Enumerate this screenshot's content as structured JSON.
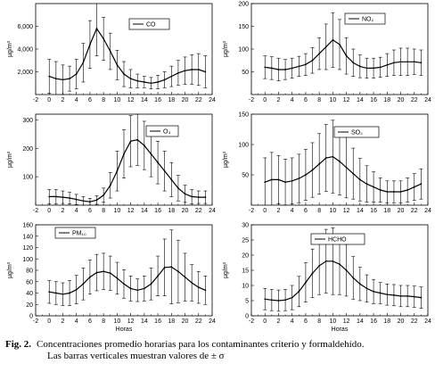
{
  "caption": {
    "figure_number": "Fig. 2.",
    "line1": "Concentraciones promedio horarias para los contaminantes criterio y formaldehído.",
    "line2": "Las barras verticales muestran valores de ± σ"
  },
  "chart_data": [
    {
      "type": "line",
      "legend": "CO",
      "ylabel": "µg/m³",
      "xlabel": "",
      "xlim": [
        -2,
        24
      ],
      "xticks": [
        -2,
        0,
        2,
        4,
        6,
        8,
        10,
        12,
        14,
        16,
        18,
        20,
        22,
        24
      ],
      "ylim": [
        0,
        8000
      ],
      "yticks": [
        2000,
        4000,
        6000
      ],
      "ytick_labels": [
        "2,000",
        "4,000",
        "6,000"
      ],
      "x": [
        0,
        1,
        2,
        3,
        4,
        5,
        6,
        7,
        8,
        9,
        10,
        11,
        12,
        13,
        14,
        15,
        16,
        17,
        18,
        19,
        20,
        21,
        22,
        23
      ],
      "y": [
        1600,
        1400,
        1300,
        1400,
        1800,
        2800,
        4400,
        5800,
        4900,
        3800,
        2600,
        1800,
        1400,
        1200,
        1100,
        1000,
        1100,
        1300,
        1600,
        1900,
        2100,
        2200,
        2200,
        2000
      ],
      "err": [
        1500,
        1500,
        1300,
        1100,
        1300,
        1700,
        2100,
        2400,
        1900,
        1600,
        1300,
        1100,
        800,
        600,
        500,
        500,
        600,
        700,
        900,
        1100,
        1200,
        1300,
        1400,
        1400
      ]
    },
    {
      "type": "line",
      "legend": "NO₂",
      "ylabel": "µg/m³",
      "xlabel": "",
      "xlim": [
        -2,
        24
      ],
      "xticks": [
        -2,
        0,
        2,
        4,
        6,
        8,
        10,
        12,
        14,
        16,
        18,
        20,
        22,
        24
      ],
      "ylim": [
        0,
        200
      ],
      "yticks": [
        50,
        100,
        150,
        200
      ],
      "ytick_labels": [
        "50",
        "100",
        "150",
        "200"
      ],
      "x": [
        0,
        1,
        2,
        3,
        4,
        5,
        6,
        7,
        8,
        9,
        10,
        11,
        12,
        13,
        14,
        15,
        16,
        17,
        18,
        19,
        20,
        21,
        22,
        23
      ],
      "y": [
        60,
        58,
        55,
        55,
        58,
        62,
        66,
        75,
        90,
        105,
        120,
        110,
        85,
        70,
        62,
        58,
        58,
        60,
        65,
        70,
        72,
        72,
        72,
        70
      ],
      "err": [
        25,
        25,
        25,
        22,
        22,
        22,
        24,
        28,
        35,
        50,
        60,
        55,
        40,
        30,
        25,
        22,
        22,
        22,
        25,
        28,
        30,
        30,
        28,
        28
      ]
    },
    {
      "type": "line",
      "legend": "O₃",
      "ylabel": "µg/m³",
      "xlabel": "",
      "xlim": [
        -2,
        24
      ],
      "xticks": [
        -2,
        0,
        2,
        4,
        6,
        8,
        10,
        12,
        14,
        16,
        18,
        20,
        22,
        24
      ],
      "ylim": [
        0,
        320
      ],
      "yticks": [
        100,
        200,
        300
      ],
      "ytick_labels": [
        "100",
        "200",
        "300"
      ],
      "x": [
        0,
        1,
        2,
        3,
        4,
        5,
        6,
        7,
        8,
        9,
        10,
        11,
        12,
        13,
        14,
        15,
        16,
        17,
        18,
        19,
        20,
        21,
        22,
        23
      ],
      "y": [
        30,
        30,
        28,
        25,
        20,
        15,
        12,
        18,
        35,
        70,
        120,
        180,
        225,
        230,
        210,
        180,
        150,
        120,
        90,
        60,
        40,
        30,
        28,
        28
      ],
      "err": [
        25,
        25,
        22,
        20,
        18,
        15,
        12,
        15,
        25,
        45,
        70,
        85,
        90,
        90,
        85,
        80,
        75,
        70,
        60,
        45,
        30,
        25,
        22,
        22
      ]
    },
    {
      "type": "line",
      "legend": "SO₂",
      "ylabel": "µg/m³",
      "xlabel": "",
      "xlim": [
        -2,
        24
      ],
      "xticks": [
        -2,
        0,
        2,
        4,
        6,
        8,
        10,
        12,
        14,
        16,
        18,
        20,
        22,
        24
      ],
      "ylim": [
        0,
        150
      ],
      "yticks": [
        50,
        100,
        150
      ],
      "ytick_labels": [
        "50",
        "100",
        "150"
      ],
      "x": [
        0,
        1,
        2,
        3,
        4,
        5,
        6,
        7,
        8,
        9,
        10,
        11,
        12,
        13,
        14,
        15,
        16,
        17,
        18,
        19,
        20,
        21,
        22,
        23
      ],
      "y": [
        38,
        42,
        42,
        38,
        40,
        44,
        50,
        58,
        68,
        78,
        80,
        72,
        62,
        52,
        42,
        35,
        30,
        25,
        22,
        22,
        22,
        25,
        30,
        35
      ],
      "err": [
        40,
        45,
        40,
        38,
        38,
        40,
        42,
        45,
        50,
        55,
        60,
        55,
        50,
        42,
        35,
        30,
        25,
        20,
        18,
        18,
        18,
        20,
        22,
        25
      ]
    },
    {
      "type": "line",
      "legend": "PM₁₀",
      "ylabel": "µg/m³",
      "xlabel": "Horas",
      "xlim": [
        -2,
        24
      ],
      "xticks": [
        -2,
        0,
        2,
        4,
        6,
        8,
        10,
        12,
        14,
        16,
        18,
        20,
        22,
        24
      ],
      "ylim": [
        0,
        160
      ],
      "yticks": [
        0,
        20,
        40,
        60,
        80,
        100,
        120,
        140,
        160
      ],
      "ytick_labels": [
        "0",
        "20",
        "40",
        "60",
        "80",
        "100",
        "120",
        "140",
        "160"
      ],
      "x": [
        0,
        1,
        2,
        3,
        4,
        5,
        6,
        7,
        8,
        9,
        10,
        11,
        12,
        13,
        14,
        15,
        16,
        17,
        18,
        19,
        20,
        21,
        22,
        23
      ],
      "y": [
        42,
        40,
        38,
        40,
        46,
        56,
        68,
        76,
        78,
        75,
        66,
        56,
        48,
        45,
        48,
        56,
        70,
        85,
        86,
        78,
        68,
        58,
        50,
        45
      ],
      "err": [
        20,
        20,
        20,
        22,
        25,
        28,
        30,
        32,
        32,
        30,
        28,
        25,
        22,
        20,
        22,
        28,
        35,
        50,
        65,
        55,
        42,
        32,
        28,
        25
      ]
    },
    {
      "type": "line",
      "legend": "HCHO",
      "ylabel": "µg/m³",
      "xlabel": "Horas",
      "xlim": [
        -2,
        24
      ],
      "xticks": [
        -2,
        0,
        2,
        4,
        6,
        8,
        10,
        12,
        14,
        16,
        18,
        20,
        22,
        24
      ],
      "ylim": [
        0,
        30
      ],
      "yticks": [
        0,
        5,
        10,
        15,
        20,
        25,
        30
      ],
      "ytick_labels": [
        "0",
        "5",
        "10",
        "15",
        "20",
        "25",
        "30"
      ],
      "x": [
        0,
        1,
        2,
        3,
        4,
        5,
        6,
        7,
        8,
        9,
        10,
        11,
        12,
        13,
        14,
        15,
        16,
        17,
        18,
        19,
        20,
        21,
        22,
        23
      ],
      "y": [
        5.5,
        5.2,
        5,
        5.2,
        6,
        8,
        11,
        14,
        16.5,
        18,
        18,
        17,
        15,
        12.5,
        10.5,
        9,
        8,
        7.5,
        7,
        6.8,
        6.5,
        6.5,
        6.3,
        6
      ],
      "err": [
        3.5,
        3.5,
        3.5,
        3.5,
        4,
        5,
        6.5,
        8,
        9.5,
        10.5,
        11,
        10,
        8.5,
        7,
        5.5,
        4.5,
        4,
        3.5,
        3.5,
        3.5,
        3.5,
        3.5,
        3.5,
        3.5
      ]
    }
  ]
}
